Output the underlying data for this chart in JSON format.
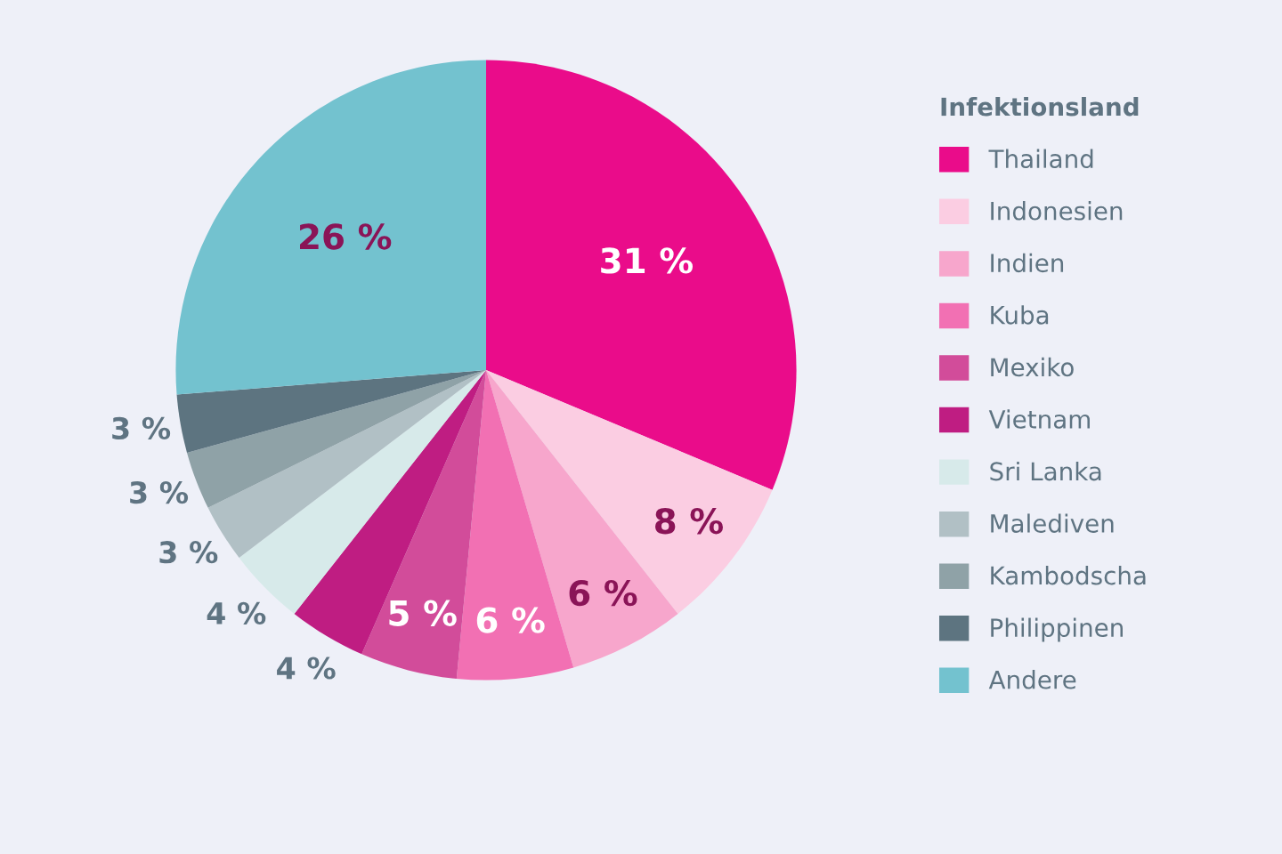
{
  "chart_data": {
    "type": "pie",
    "legend_title": "Infektionsland",
    "legend": "right",
    "categories": [
      "Thailand",
      "Indonesien",
      "Indien",
      "Kuba",
      "Mexiko",
      "Vietnam",
      "Sri Lanka",
      "Malediven",
      "Kambodscha",
      "Philippinen",
      "Andere"
    ],
    "values": [
      31,
      8,
      6,
      6,
      5,
      4,
      4,
      3,
      3,
      3,
      26
    ],
    "value_labels": [
      "31 %",
      "8 %",
      "6 %",
      "6 %",
      "5 %",
      "4 %",
      "4 %",
      "3 %",
      "3 %",
      "3 %",
      "26 %"
    ],
    "colors": [
      "#ea0c8a",
      "#fbcde2",
      "#f7a6cc",
      "#f270b3",
      "#d24c9a",
      "#bf1d82",
      "#d7eaea",
      "#b1c0c5",
      "#8fa2a7",
      "#5d7480",
      "#73c2cf"
    ]
  }
}
